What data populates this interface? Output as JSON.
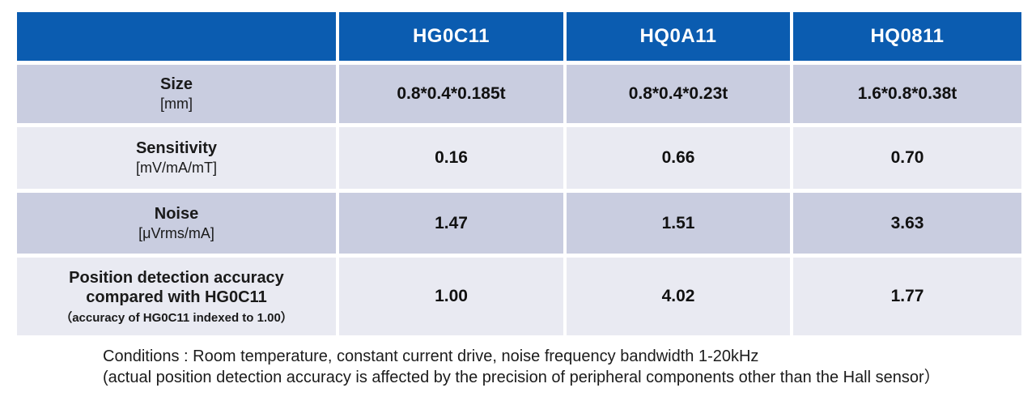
{
  "colors": {
    "header_blue": "#0b5cb0",
    "row_dark": "#c9cde0",
    "row_light": "#e9eaf2",
    "header_text": "#ffffff",
    "body_text": "#1a1a1a"
  },
  "table": {
    "corner_label": "",
    "columns": [
      "HG0C11",
      "HQ0A11",
      "HQ0811"
    ],
    "rows": [
      {
        "label": "Size",
        "unit": "[mm]",
        "values": [
          "0.8*0.4*0.185t",
          "0.8*0.4*0.23t",
          "1.6*0.8*0.38t"
        ]
      },
      {
        "label": "Sensitivity",
        "unit": "[mV/mA/mT]",
        "values": [
          "0.16",
          "0.66",
          "0.70"
        ]
      },
      {
        "label": "Noise",
        "unit": "[μVrms/mA]",
        "values": [
          "1.47",
          "1.51",
          "3.63"
        ]
      },
      {
        "label": "Position detection accuracy compared with HG0C11",
        "note": "（accuracy of HG0C11 indexed to 1.00）",
        "values": [
          "1.00",
          "4.02",
          "1.77"
        ]
      }
    ]
  },
  "footnote": {
    "line1": "Conditions : Room temperature, constant current drive, noise frequency bandwidth 1-20kHz",
    "line2": "(actual position detection accuracy is affected by the precision of peripheral components other than the Hall sensor）"
  }
}
